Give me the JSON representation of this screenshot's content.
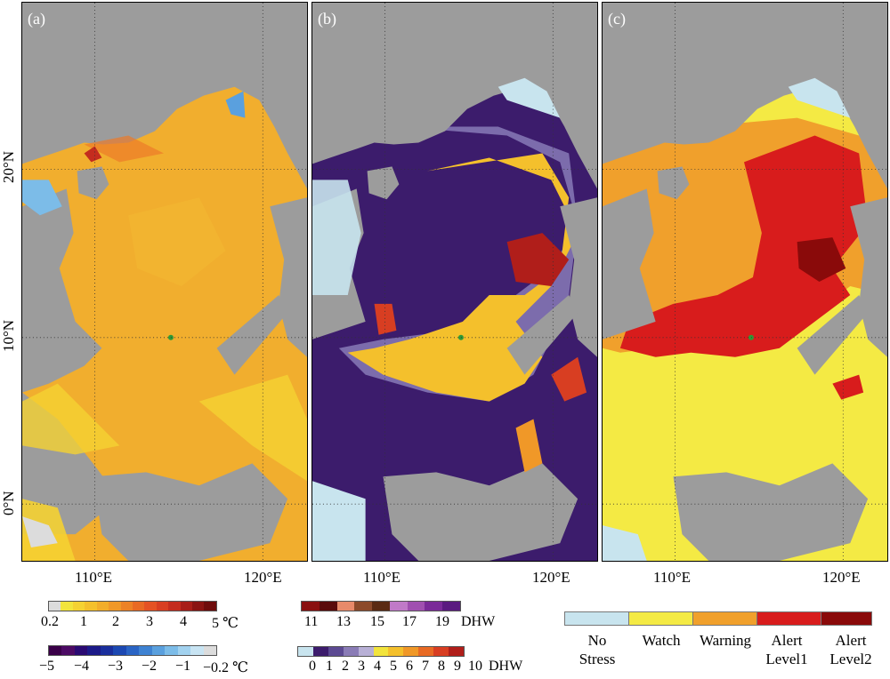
{
  "panels": [
    {
      "label": "(a)",
      "name": "sst-anomaly"
    },
    {
      "label": "(b)",
      "name": "degree-heating-weeks"
    },
    {
      "label": "(c)",
      "name": "alert-level"
    }
  ],
  "latitude_labels": [
    "20°N",
    "10°N",
    "0°N"
  ],
  "longitude_labels": [
    "110°E",
    "120°E"
  ],
  "legend_sst_positive": {
    "ticks": [
      "0.2",
      "1",
      "2",
      "3",
      "4",
      "5 ℃"
    ],
    "colors": [
      "#dcdcdc",
      "#f2e43c",
      "#f5d232",
      "#f4c02c",
      "#f2ad2a",
      "#f09828",
      "#ec8226",
      "#e86a24",
      "#e45224",
      "#d83e22",
      "#c42c1e",
      "#a81e18",
      "#8a1412",
      "#6e0c0c"
    ]
  },
  "legend_sst_negative": {
    "ticks": [
      "−5",
      "−4",
      "−3",
      "−2",
      "−1",
      "−0.2 ℃"
    ],
    "colors": [
      "#3a0048",
      "#4c0a64",
      "#2a0a72",
      "#1c1a88",
      "#1a2e9c",
      "#1c48b2",
      "#2a64c4",
      "#3e82d2",
      "#5aa0de",
      "#7cbce8",
      "#a2d2ef",
      "#c8e4f3",
      "#dcdcdc"
    ]
  },
  "legend_dhw_high": {
    "ticks": [
      "11",
      "13",
      "15",
      "17",
      "19",
      "DHW"
    ],
    "colors": [
      "#8a1010",
      "#5a0a0a",
      "#e88a6a",
      "#8c4a2a",
      "#5a2a12",
      "#c07ac8",
      "#a050b0",
      "#7a2a98",
      "#5a1a80"
    ]
  },
  "legend_dhw_low": {
    "ticks": [
      "0",
      "1",
      "2",
      "3",
      "4",
      "5",
      "6",
      "7",
      "8",
      "9",
      "10",
      "DHW"
    ],
    "colors": [
      "#c8e4ee",
      "#3c1c6c",
      "#5c4a92",
      "#8a7cb6",
      "#b8b0d6",
      "#f2e43c",
      "#f4c02c",
      "#f09828",
      "#e86a24",
      "#d83e22",
      "#b01e1a"
    ]
  },
  "alert_legend": [
    {
      "label": "No\nStress",
      "color": "#c8e4ee"
    },
    {
      "label": "Watch",
      "color": "#f4ea44"
    },
    {
      "label": "Warning",
      "color": "#f0a02c"
    },
    {
      "label": "Alert\nLevel1",
      "color": "#d81c1c"
    },
    {
      "label": "Alert\nLevel2",
      "color": "#8a0a0a"
    }
  ],
  "colors": {
    "land": "#9c9c9c",
    "coast": "#111111",
    "grid": "#333333"
  }
}
